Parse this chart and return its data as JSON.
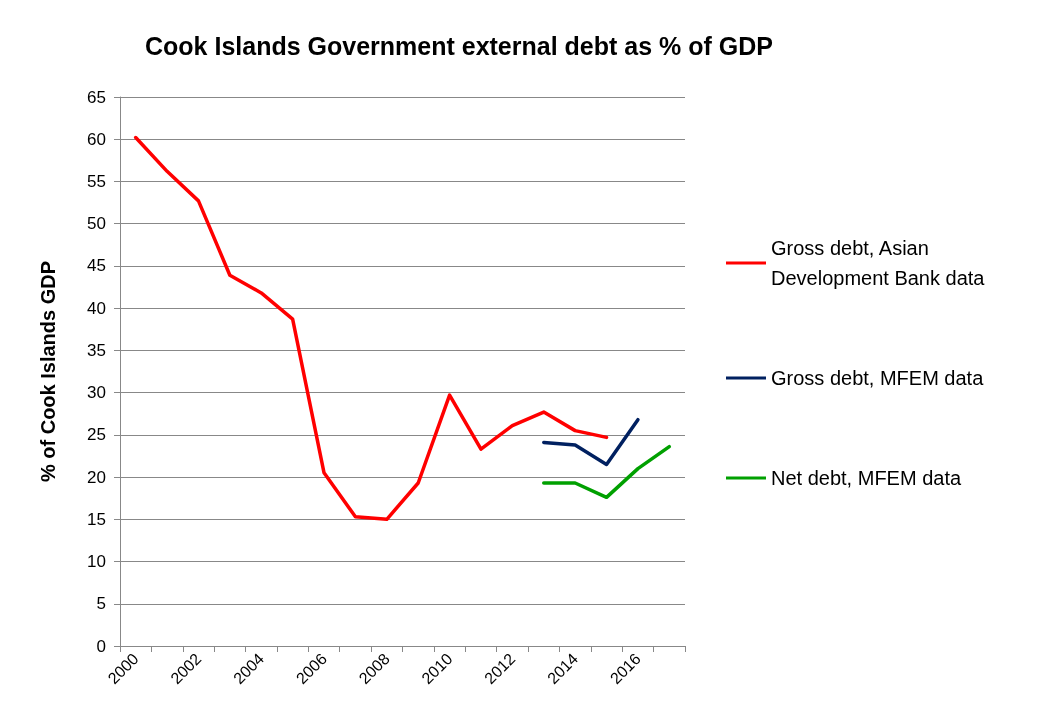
{
  "chart_data": {
    "type": "line",
    "title": "Cook Islands Government external debt as % of GDP",
    "ylabel": "% of Cook Islands GDP",
    "categories": [
      "2000",
      null,
      "2002",
      null,
      "2004",
      null,
      "2006",
      null,
      "2008",
      null,
      "2010",
      null,
      "2012",
      null,
      "2014",
      null,
      "2016",
      null
    ],
    "series": [
      {
        "name": "Gross debt, Asian Development Bank data",
        "color": "#ff0000",
        "values": [
          60.2,
          56.2,
          52.7,
          43.9,
          41.8,
          38.7,
          20.5,
          15.3,
          15.0,
          19.3,
          29.7,
          23.3,
          26.1,
          27.7,
          25.5,
          24.7,
          null,
          null
        ]
      },
      {
        "name": "Gross debt, MFEM data",
        "color": "#002060",
        "values": [
          null,
          null,
          null,
          null,
          null,
          null,
          null,
          null,
          null,
          null,
          null,
          null,
          null,
          24.1,
          23.8,
          21.5,
          26.8,
          null
        ]
      },
      {
        "name": "Net debt, MFEM data",
        "color": "#00a000",
        "values": [
          null,
          null,
          null,
          null,
          null,
          null,
          null,
          null,
          null,
          null,
          null,
          null,
          null,
          19.3,
          19.3,
          17.6,
          21.0,
          23.6
        ]
      }
    ],
    "ylim": [
      0,
      65
    ],
    "yticks": [
      0,
      5,
      10,
      15,
      20,
      25,
      30,
      35,
      40,
      45,
      50,
      55,
      60,
      65
    ],
    "grid": "y",
    "legend": "right",
    "marker": "none",
    "line_style": "solid"
  }
}
